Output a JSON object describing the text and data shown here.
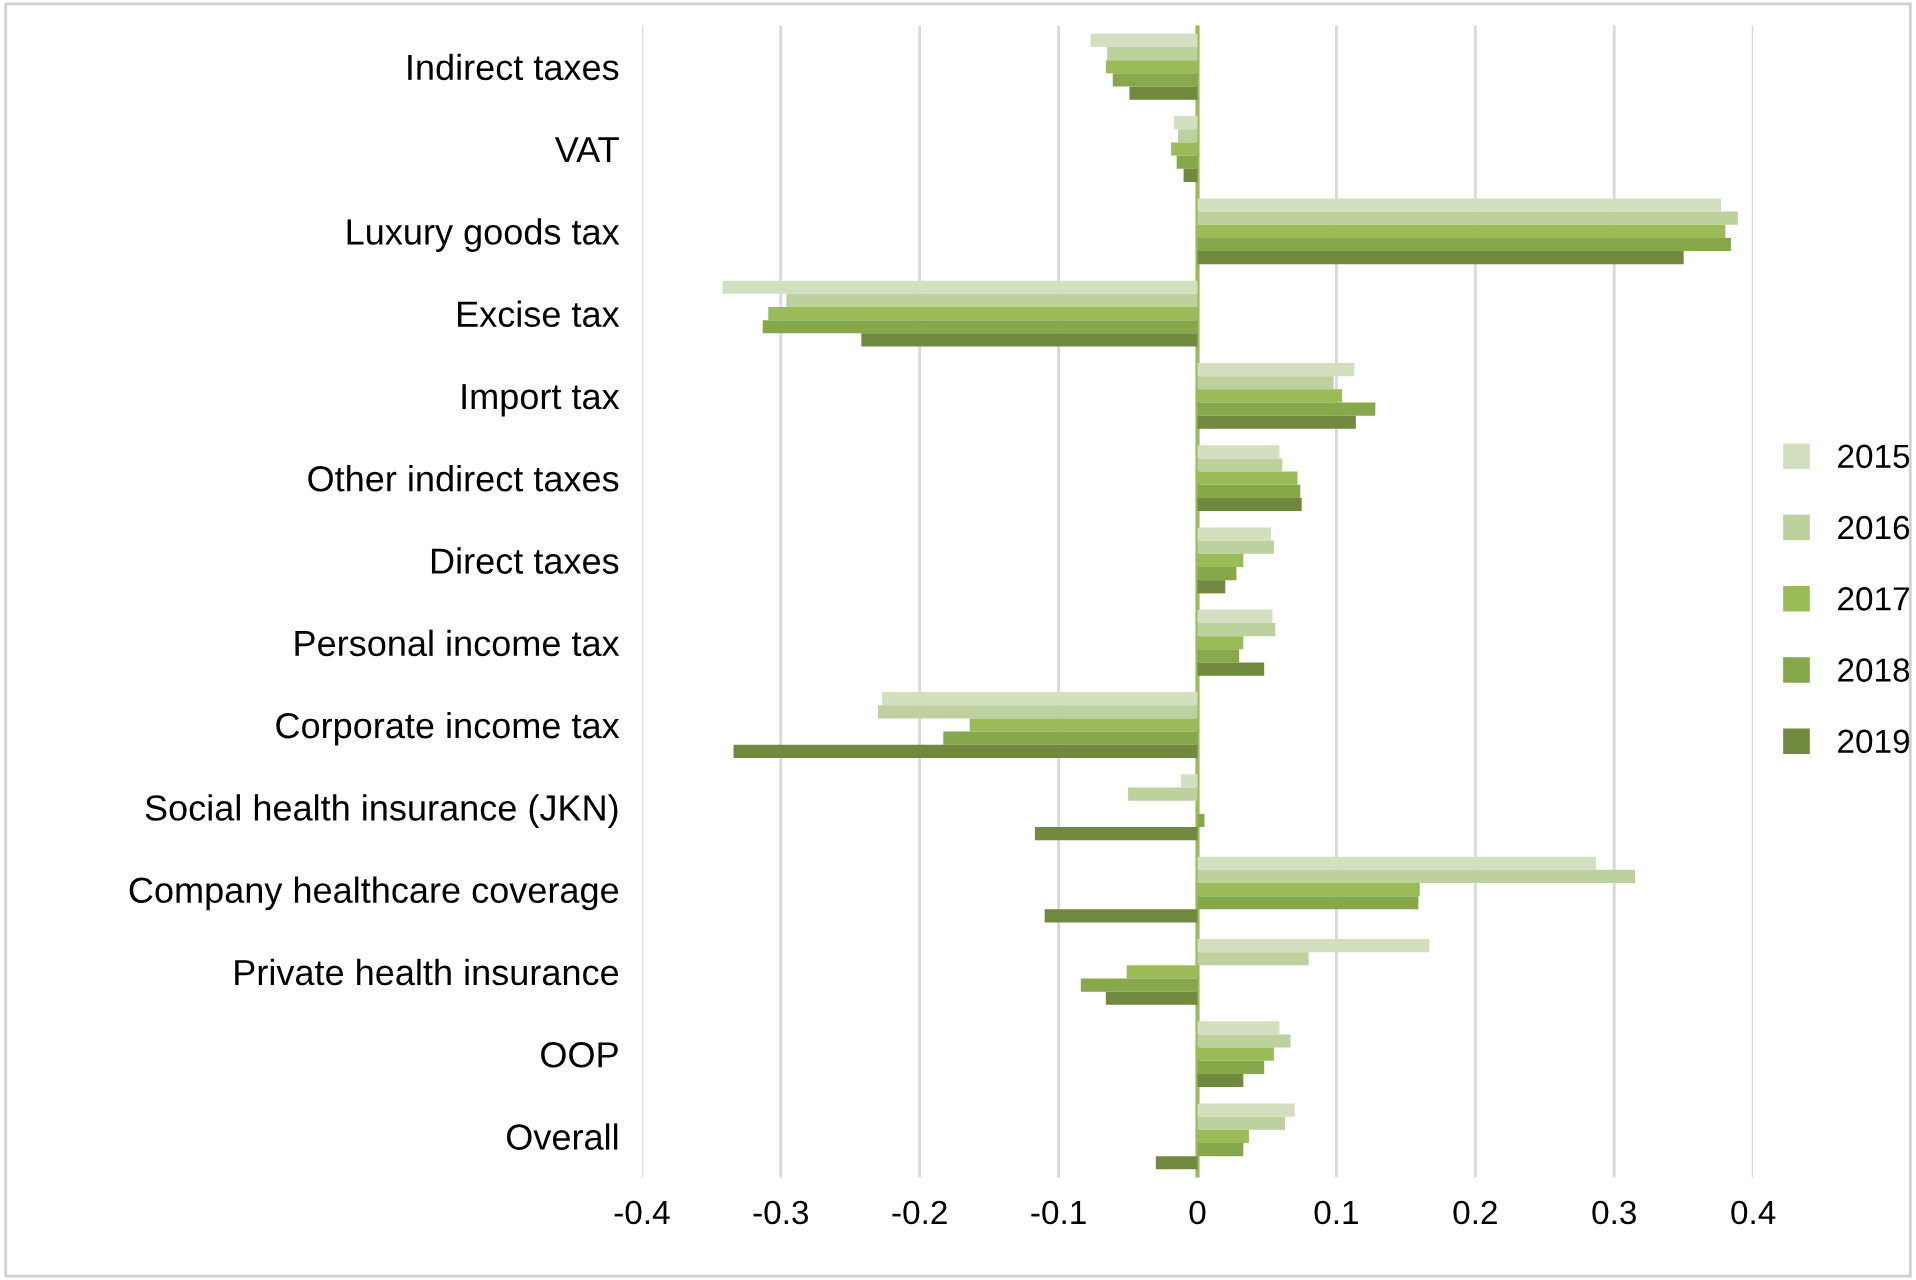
{
  "chart_data": {
    "type": "bar",
    "orientation": "horizontal",
    "categories": [
      "Indirect taxes",
      "VAT",
      "Luxury goods tax",
      "Excise tax",
      "Import tax",
      "Other indirect taxes",
      "Direct taxes",
      "Personal income tax",
      "Corporate income tax",
      "Social health insurance (JKN)",
      "Company healthcare coverage",
      "Private health insurance",
      "OOP",
      "Overall"
    ],
    "series": [
      {
        "name": "2015",
        "color": "#d3e0c0",
        "values": [
          -0.077,
          -0.017,
          0.377,
          -0.342,
          0.113,
          0.059,
          0.053,
          0.054,
          -0.227,
          -0.012,
          0.287,
          0.167,
          0.059,
          0.07
        ]
      },
      {
        "name": "2016",
        "color": "#bcd19e",
        "values": [
          -0.065,
          -0.014,
          0.389,
          -0.296,
          0.098,
          0.061,
          0.055,
          0.056,
          -0.23,
          -0.05,
          0.315,
          0.08,
          0.067,
          0.063
        ]
      },
      {
        "name": "2017",
        "color": "#9bbb59",
        "values": [
          -0.066,
          -0.019,
          0.38,
          -0.309,
          0.104,
          0.072,
          0.033,
          0.033,
          -0.164,
          0,
          0.16,
          -0.051,
          0.055,
          0.037
        ]
      },
      {
        "name": "2018",
        "color": "#86a84a",
        "values": [
          -0.061,
          -0.015,
          0.384,
          -0.313,
          0.128,
          0.074,
          0.028,
          0.03,
          -0.183,
          0.005,
          0.159,
          -0.084,
          0.048,
          0.033
        ]
      },
      {
        "name": "2019",
        "color": "#71893f",
        "values": [
          -0.049,
          -0.01,
          0.35,
          -0.242,
          0.114,
          0.075,
          0.02,
          0.048,
          -0.334,
          -0.117,
          -0.11,
          -0.066,
          0.033,
          -0.03
        ]
      }
    ],
    "xlim": [
      -0.4,
      0.4
    ],
    "xticks": [
      -0.4,
      -0.3,
      -0.2,
      -0.1,
      0,
      0.1,
      0.2,
      0.3,
      0.4
    ],
    "ref_lines": [
      {
        "axis": "x",
        "value": 0,
        "color": "#9bbb59"
      }
    ],
    "grid": "x",
    "legend": "right"
  }
}
